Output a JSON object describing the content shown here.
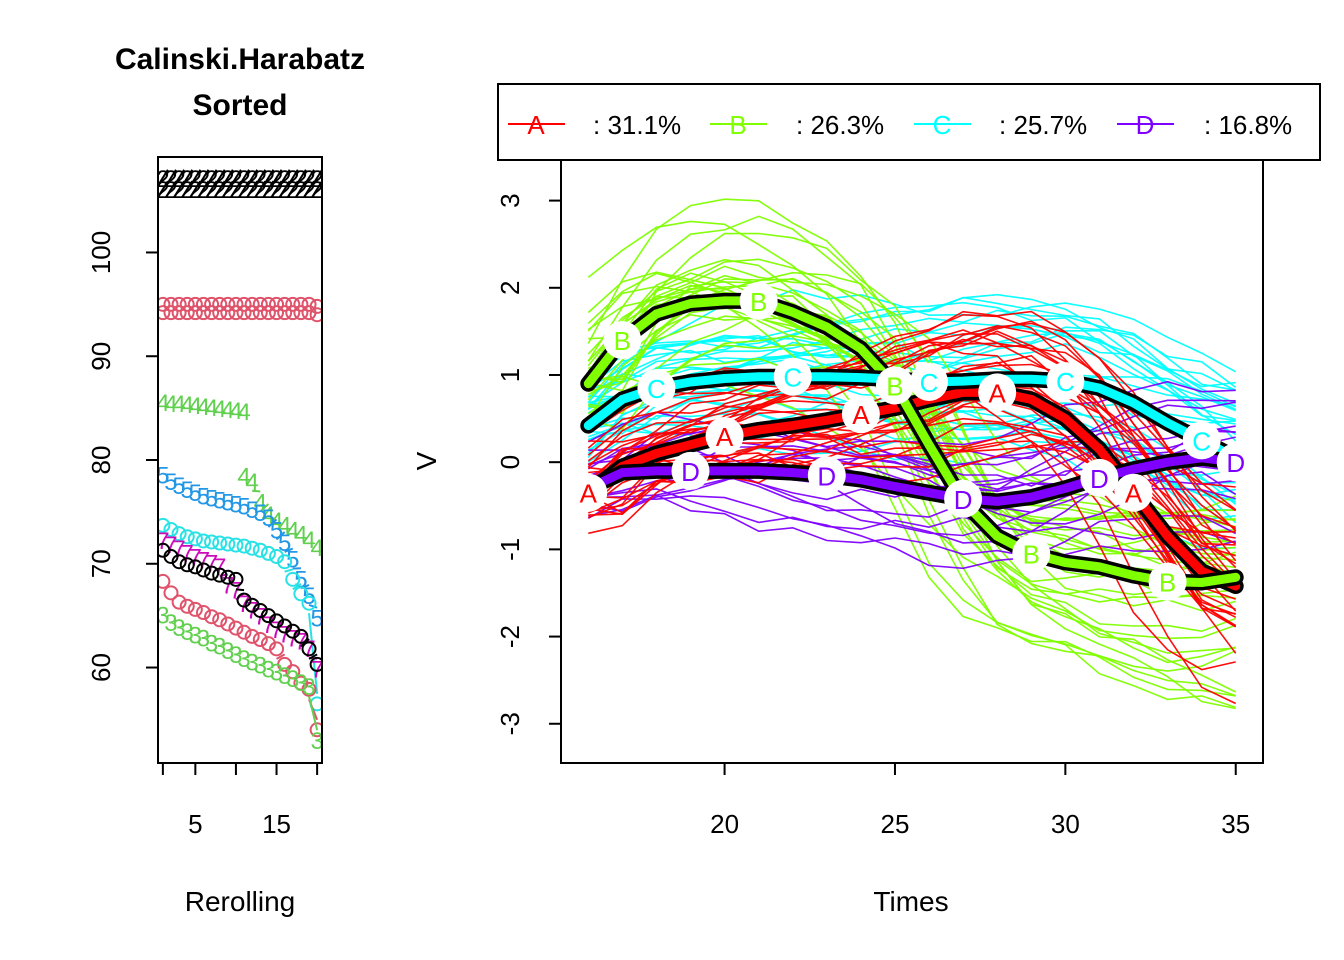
{
  "colors": {
    "A": "#ff0000",
    "B": "#80ff00",
    "C": "#00ffff",
    "D": "#8000ff",
    "black": "#000000",
    "red_pink": "#df536b",
    "green2": "#61d04f",
    "blue2": "#2297e6",
    "cyan2": "#28e2e5",
    "magenta2": "#cd0bbc"
  },
  "chart_data": [
    {
      "type": "scatter",
      "title": "Calinski.Harabatz\nSorted",
      "title_lines": [
        "Calinski.Harabatz",
        "Sorted"
      ],
      "xlabel": "Rerolling",
      "ylabel": "",
      "xlim": [
        0.4,
        20.6
      ],
      "ylim": [
        50.8,
        109.2
      ],
      "xticks": [
        5,
        15
      ],
      "xticks_minor": [
        1,
        5,
        10,
        15,
        20
      ],
      "yticks": [
        60,
        70,
        80,
        90,
        100
      ],
      "grid": false,
      "series": [
        {
          "symbol": "2",
          "color": "#000000",
          "hatched": true,
          "values": [
            107.2,
            107.2,
            107.2,
            107.2,
            107.2,
            107.2,
            107.2,
            107.2,
            107.2,
            107.2,
            107.2,
            107.2,
            107.2,
            107.2,
            107.2,
            107.2,
            107.2,
            107.2,
            107.2,
            107.2
          ]
        },
        {
          "symbol": "2",
          "color": "#000000",
          "hatched": true,
          "values": [
            106.1,
            106.1,
            106.1,
            106.1,
            106.1,
            106.1,
            106.1,
            106.1,
            106.1,
            106.1,
            106.1,
            106.1,
            106.1,
            106.1,
            106.1,
            106.1,
            106.1,
            106.1,
            106.1,
            106.1
          ]
        },
        {
          "symbol": "o",
          "color": "#df536b",
          "values": [
            95,
            95,
            95,
            95,
            95,
            95,
            95,
            95,
            95,
            95,
            95,
            95,
            95,
            95,
            95,
            95,
            95,
            95,
            95,
            94.8
          ]
        },
        {
          "symbol": "o",
          "color": "#df536b",
          "values": [
            94.2,
            94.2,
            94.2,
            94.2,
            94.2,
            94.2,
            94.2,
            94.2,
            94.2,
            94.2,
            94.2,
            94.2,
            94.2,
            94.2,
            94.2,
            94.2,
            94.2,
            94.2,
            94.2,
            94
          ]
        },
        {
          "symbol": "4",
          "color": "#61d04f",
          "values": [
            85.6,
            85.5,
            85.5,
            85.4,
            85.3,
            85.2,
            85.1,
            85,
            84.9,
            84.8,
            84.7,
            null,
            null,
            null,
            null,
            null,
            null,
            null,
            null,
            null
          ]
        },
        {
          "symbol": "4",
          "color": "#61d04f",
          "values": [
            null,
            null,
            null,
            null,
            null,
            null,
            null,
            null,
            null,
            null,
            78.5,
            78,
            76,
            74.8,
            74.2,
            73.8,
            73.3,
            72.9,
            72.4,
            71.6
          ]
        },
        {
          "symbol": "5",
          "color": "#2297e6",
          "values": [
            78.6,
            78,
            77.6,
            77.2,
            76.9,
            76.6,
            76.4,
            76.2,
            76,
            75.8,
            75.6,
            75.3,
            75,
            74.5,
            73.3,
            72.1,
            70.5,
            68.6,
            67,
            64.8
          ]
        },
        {
          "symbol": "o",
          "color": "#28e2e5",
          "values": [
            73.7,
            73.3,
            72.9,
            72.6,
            72.4,
            72.2,
            72.1,
            72,
            71.9,
            71.8,
            71.7,
            71.5,
            71.3,
            71,
            70.7,
            70.2,
            68.5,
            67.1,
            66.2,
            56.5
          ]
        },
        {
          "symbol": "7",
          "color": "#cd0bbc",
          "values": [
            72.3,
            71.9,
            71.5,
            71.1,
            70.7,
            70.4,
            70.1,
            69.8,
            68,
            67.5,
            66.2,
            65.6,
            65,
            64.2,
            63.7,
            63.3,
            62.9,
            62.6,
            61.9,
            59.9
          ]
        },
        {
          "symbol": "o",
          "color": "#000000",
          "values": [
            71.3,
            70.7,
            70.2,
            69.9,
            69.7,
            69.4,
            69.1,
            68.9,
            68.7,
            68.5,
            66.5,
            66,
            65.5,
            65,
            64.5,
            64,
            63.5,
            63,
            61.8,
            60.3
          ]
        },
        {
          "symbol": "o",
          "color": "#df536b",
          "values": [
            68.3,
            67.2,
            66.3,
            65.9,
            65.6,
            65.3,
            64.9,
            64.6,
            64.2,
            63.8,
            63.4,
            63,
            62.7,
            62.3,
            61.8,
            60.3,
            59.6,
            58.5,
            57.9,
            54
          ]
        },
        {
          "symbol": "3",
          "color": "#61d04f",
          "values": [
            65.1,
            64.4,
            63.9,
            63.5,
            63.2,
            62.9,
            62.4,
            62.1,
            61.7,
            61.3,
            60.9,
            60.6,
            60.3,
            59.9,
            59.6,
            59.3,
            59,
            58.6,
            58.2,
            53
          ]
        }
      ]
    },
    {
      "type": "line",
      "title": "",
      "xlabel": "Times",
      "ylabel": "V",
      "xlim": [
        15.2,
        35.8
      ],
      "ylim": [
        -3.45,
        3.5
      ],
      "xticks": [
        20,
        25,
        30,
        35
      ],
      "yticks": [
        -3,
        -2,
        -1,
        0,
        1,
        2,
        3
      ],
      "grid": false,
      "legend": {
        "placement": "top",
        "entries": [
          {
            "key": "A",
            "label": ": 31.1%",
            "color": "#ff0000"
          },
          {
            "key": "B",
            "label": ": 26.3%",
            "color": "#80ff00"
          },
          {
            "key": "C",
            "label": ": 25.7%",
            "color": "#00ffff"
          },
          {
            "key": "D",
            "label": ": 16.8%",
            "color": "#8000ff"
          }
        ]
      },
      "x": [
        16,
        17,
        18,
        19,
        20,
        21,
        22,
        23,
        24,
        25,
        26,
        27,
        28,
        29,
        30,
        31,
        32,
        33,
        34,
        35
      ],
      "series": [
        {
          "name": "A",
          "color": "#ff0000",
          "values": [
            -0.35,
            -0.05,
            0.1,
            0.2,
            0.3,
            0.37,
            0.42,
            0.48,
            0.55,
            0.62,
            0.72,
            0.8,
            0.8,
            0.72,
            0.5,
            0.15,
            -0.35,
            -0.85,
            -1.25,
            -1.42
          ],
          "marker_x": [
            16,
            20,
            24,
            28,
            32
          ]
        },
        {
          "name": "B",
          "color": "#80ff00",
          "values": [
            0.9,
            1.4,
            1.7,
            1.82,
            1.85,
            1.85,
            1.72,
            1.55,
            1.3,
            0.88,
            0.2,
            -0.45,
            -0.85,
            -1.05,
            -1.15,
            -1.2,
            -1.3,
            -1.37,
            -1.38,
            -1.32
          ],
          "marker_x": [
            17,
            21,
            25,
            29,
            33
          ]
        },
        {
          "name": "C",
          "color": "#00ffff",
          "values": [
            0.42,
            0.72,
            0.85,
            0.92,
            0.96,
            0.98,
            0.98,
            0.98,
            0.97,
            0.95,
            0.92,
            0.93,
            0.95,
            0.95,
            0.93,
            0.85,
            0.68,
            0.45,
            0.25,
            0.05
          ],
          "marker_x": [
            18,
            22,
            26,
            30,
            34
          ]
        },
        {
          "name": "D",
          "color": "#8000ff",
          "values": [
            -0.3,
            -0.12,
            -0.1,
            -0.1,
            -0.1,
            -0.1,
            -0.12,
            -0.15,
            -0.2,
            -0.28,
            -0.35,
            -0.42,
            -0.45,
            -0.4,
            -0.3,
            -0.18,
            -0.08,
            0,
            0.05,
            0
          ],
          "marker_x": [
            19,
            23,
            27,
            31,
            35
          ]
        }
      ]
    }
  ]
}
